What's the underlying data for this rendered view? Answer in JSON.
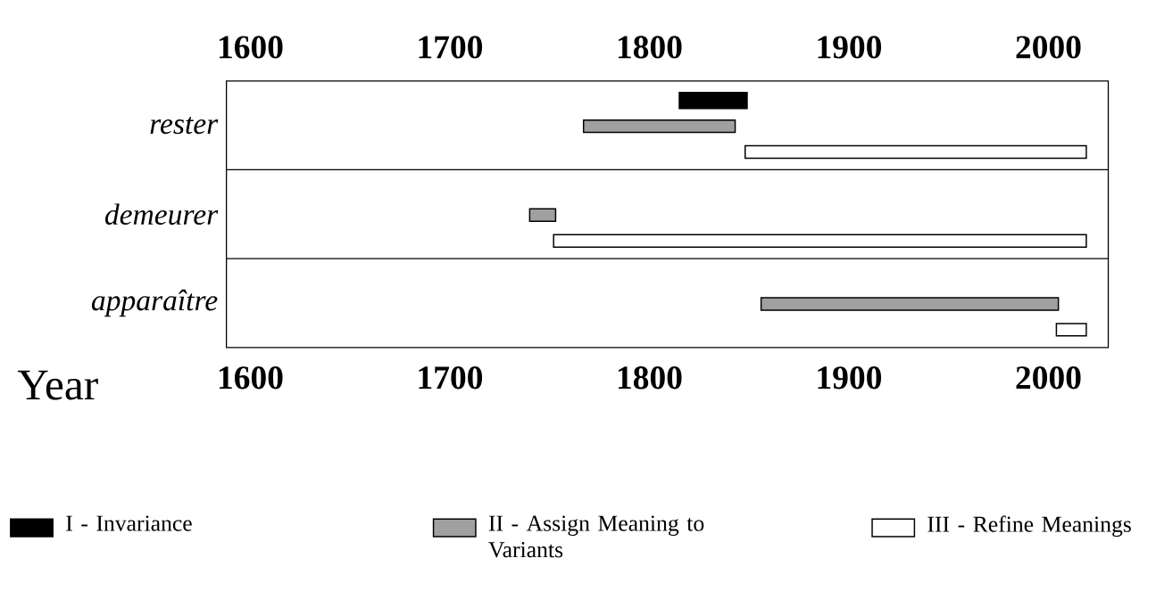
{
  "chart_data": {
    "type": "bar",
    "orientation": "horizontal",
    "xlabel": "Year",
    "categories": [
      "rester",
      "demeurer",
      "apparaître"
    ],
    "series": [
      {
        "name": "I - Invariance",
        "color": "#000000",
        "base": [
          1815,
          null,
          null
        ],
        "values": [
          34,
          null,
          null
        ]
      },
      {
        "name": "II - Assign Meaning to Variants",
        "color": "#a0a0a0",
        "base": [
          1767,
          1740,
          1856
        ],
        "values": [
          76,
          13,
          149
        ]
      },
      {
        "name": "III - Refine Meanings",
        "color": "#ffffff",
        "base": [
          1848,
          1752,
          2004
        ],
        "values": [
          171,
          267,
          15
        ]
      }
    ],
    "xlim": [
      1588,
      2030
    ],
    "xticks": [
      1600,
      1700,
      1800,
      1900,
      2000
    ],
    "x2lim": [
      1588,
      2030
    ],
    "x2ticks": [
      1600,
      1700,
      1800,
      1900,
      2000
    ],
    "grid": "y",
    "legend": "bottom"
  }
}
